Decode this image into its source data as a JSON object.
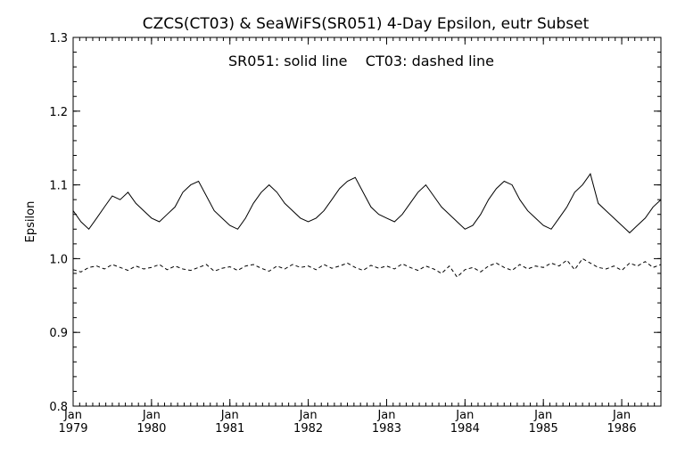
{
  "chart_data": {
    "type": "line",
    "title": "CZCS(CT03) & SeaWiFS(SR051) 4-Day Epsilon, eutr Subset",
    "annotation": "SR051: solid line    CT03: dashed line",
    "xlabel": "",
    "ylabel": "Epsilon",
    "xlim": [
      1979.0,
      1986.5
    ],
    "ylim": [
      0.8,
      1.3
    ],
    "y_ticks": [
      "0.8",
      "0.9",
      "1.0",
      "1.1",
      "1.2",
      "1.3"
    ],
    "x_ticks": [
      {
        "x": 1979,
        "month": "Jan",
        "year": "1979"
      },
      {
        "x": 1980,
        "month": "Jan",
        "year": "1980"
      },
      {
        "x": 1981,
        "month": "Jan",
        "year": "1981"
      },
      {
        "x": 1982,
        "month": "Jan",
        "year": "1982"
      },
      {
        "x": 1983,
        "month": "Jan",
        "year": "1983"
      },
      {
        "x": 1984,
        "month": "Jan",
        "year": "1984"
      },
      {
        "x": 1985,
        "month": "Jan",
        "year": "1985"
      },
      {
        "x": 1986,
        "month": "Jan",
        "year": "1986"
      }
    ],
    "grid": false,
    "series": [
      {
        "name": "SR051",
        "style": "solid",
        "color": "#000000",
        "x": [
          1979.0,
          1979.1,
          1979.2,
          1979.3,
          1979.4,
          1979.5,
          1979.6,
          1979.7,
          1979.8,
          1979.9,
          1980.0,
          1980.1,
          1980.2,
          1980.3,
          1980.4,
          1980.5,
          1980.6,
          1980.7,
          1980.8,
          1980.9,
          1981.0,
          1981.1,
          1981.2,
          1981.3,
          1981.4,
          1981.5,
          1981.6,
          1981.7,
          1981.8,
          1981.9,
          1982.0,
          1982.1,
          1982.2,
          1982.3,
          1982.4,
          1982.5,
          1982.6,
          1982.7,
          1982.8,
          1982.9,
          1983.0,
          1983.1,
          1983.2,
          1983.3,
          1983.4,
          1983.5,
          1983.6,
          1983.7,
          1983.8,
          1983.9,
          1984.0,
          1984.1,
          1984.2,
          1984.3,
          1984.4,
          1984.5,
          1984.6,
          1984.7,
          1984.8,
          1984.9,
          1985.0,
          1985.1,
          1985.2,
          1985.3,
          1985.4,
          1985.5,
          1985.6,
          1985.7,
          1985.8,
          1985.9,
          1986.0,
          1986.1,
          1986.2,
          1986.3,
          1986.4,
          1986.5
        ],
        "y": [
          1.065,
          1.05,
          1.04,
          1.055,
          1.07,
          1.085,
          1.08,
          1.09,
          1.075,
          1.065,
          1.055,
          1.05,
          1.06,
          1.07,
          1.09,
          1.1,
          1.105,
          1.085,
          1.065,
          1.055,
          1.045,
          1.04,
          1.055,
          1.075,
          1.09,
          1.1,
          1.09,
          1.075,
          1.065,
          1.055,
          1.05,
          1.055,
          1.065,
          1.08,
          1.095,
          1.105,
          1.11,
          1.09,
          1.07,
          1.06,
          1.055,
          1.05,
          1.06,
          1.075,
          1.09,
          1.1,
          1.085,
          1.07,
          1.06,
          1.05,
          1.04,
          1.045,
          1.06,
          1.08,
          1.095,
          1.105,
          1.1,
          1.08,
          1.065,
          1.055,
          1.045,
          1.04,
          1.055,
          1.07,
          1.09,
          1.1,
          1.115,
          1.075,
          1.065,
          1.055,
          1.045,
          1.035,
          1.045,
          1.055,
          1.07,
          1.08
        ]
      },
      {
        "name": "CT03",
        "style": "dashed",
        "color": "#000000",
        "x": [
          1979.0,
          1979.1,
          1979.2,
          1979.3,
          1979.4,
          1979.5,
          1979.6,
          1979.7,
          1979.8,
          1979.9,
          1980.0,
          1980.1,
          1980.2,
          1980.3,
          1980.4,
          1980.5,
          1980.6,
          1980.7,
          1980.8,
          1980.9,
          1981.0,
          1981.1,
          1981.2,
          1981.3,
          1981.4,
          1981.5,
          1981.6,
          1981.7,
          1981.8,
          1981.9,
          1982.0,
          1982.1,
          1982.2,
          1982.3,
          1982.4,
          1982.5,
          1982.6,
          1982.7,
          1982.8,
          1982.9,
          1983.0,
          1983.1,
          1983.2,
          1983.3,
          1983.4,
          1983.5,
          1983.6,
          1983.7,
          1983.8,
          1983.9,
          1984.0,
          1984.1,
          1984.2,
          1984.3,
          1984.4,
          1984.5,
          1984.6,
          1984.7,
          1984.8,
          1984.9,
          1985.0,
          1985.1,
          1985.2,
          1985.3,
          1985.4,
          1985.5,
          1985.6,
          1985.7,
          1985.8,
          1985.9,
          1986.0,
          1986.1,
          1986.2,
          1986.3,
          1986.4,
          1986.5
        ],
        "y": [
          0.985,
          0.982,
          0.988,
          0.99,
          0.986,
          0.992,
          0.988,
          0.984,
          0.99,
          0.986,
          0.988,
          0.992,
          0.985,
          0.99,
          0.986,
          0.984,
          0.988,
          0.992,
          0.983,
          0.987,
          0.989,
          0.984,
          0.99,
          0.992,
          0.987,
          0.983,
          0.99,
          0.986,
          0.992,
          0.988,
          0.99,
          0.985,
          0.992,
          0.987,
          0.99,
          0.994,
          0.988,
          0.984,
          0.991,
          0.987,
          0.99,
          0.986,
          0.993,
          0.988,
          0.984,
          0.99,
          0.986,
          0.98,
          0.99,
          0.975,
          0.985,
          0.988,
          0.982,
          0.99,
          0.994,
          0.988,
          0.984,
          0.992,
          0.986,
          0.99,
          0.988,
          0.994,
          0.99,
          0.998,
          0.985,
          1.0,
          0.994,
          0.988,
          0.986,
          0.99,
          0.984,
          0.994,
          0.99,
          0.996,
          0.988,
          0.992
        ]
      }
    ]
  }
}
